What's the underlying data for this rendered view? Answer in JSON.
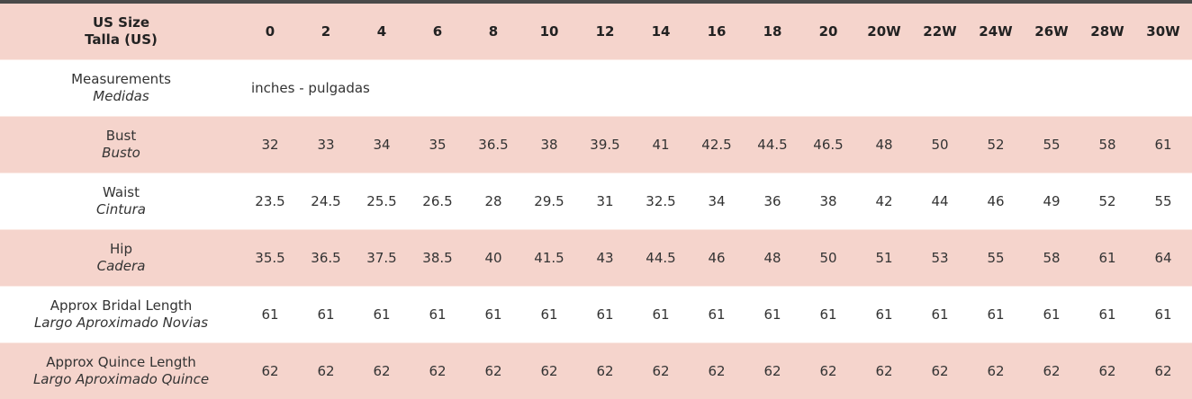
{
  "header": {
    "label": "US Size",
    "label_es": "Talla (US)",
    "sizes": [
      "0",
      "2",
      "4",
      "6",
      "8",
      "10",
      "12",
      "14",
      "16",
      "18",
      "20",
      "20W",
      "22W",
      "24W",
      "26W",
      "28W",
      "30W"
    ]
  },
  "measurements": {
    "label": "Measurements",
    "label_es": "Medidas",
    "unit": "inches - pulgadas"
  },
  "rows": [
    {
      "label": "Bust",
      "label_es": "Busto",
      "values": [
        "32",
        "33",
        "34",
        "35",
        "36.5",
        "38",
        "39.5",
        "41",
        "42.5",
        "44.5",
        "46.5",
        "48",
        "50",
        "52",
        "55",
        "58",
        "61"
      ]
    },
    {
      "label": "Waist",
      "label_es": "Cintura",
      "values": [
        "23.5",
        "24.5",
        "25.5",
        "26.5",
        "28",
        "29.5",
        "31",
        "32.5",
        "34",
        "36",
        "38",
        "42",
        "44",
        "46",
        "49",
        "52",
        "55"
      ]
    },
    {
      "label": "Hip",
      "label_es": "Cadera",
      "values": [
        "35.5",
        "36.5",
        "37.5",
        "38.5",
        "40",
        "41.5",
        "43",
        "44.5",
        "46",
        "48",
        "50",
        "51",
        "53",
        "55",
        "58",
        "61",
        "64"
      ]
    },
    {
      "label": "Approx Bridal Length",
      "label_es": "Largo Aproximado Novias",
      "values": [
        "61",
        "61",
        "61",
        "61",
        "61",
        "61",
        "61",
        "61",
        "61",
        "61",
        "61",
        "61",
        "61",
        "61",
        "61",
        "61",
        "61"
      ]
    },
    {
      "label": "Approx Quince Length",
      "label_es": "Largo Aproximado Quince",
      "values": [
        "62",
        "62",
        "62",
        "62",
        "62",
        "62",
        "62",
        "62",
        "62",
        "62",
        "62",
        "62",
        "62",
        "62",
        "62",
        "62",
        "62"
      ]
    }
  ],
  "colors": {
    "row_pink": "#f5d4cc",
    "top_bar": "#4a4a4a"
  }
}
